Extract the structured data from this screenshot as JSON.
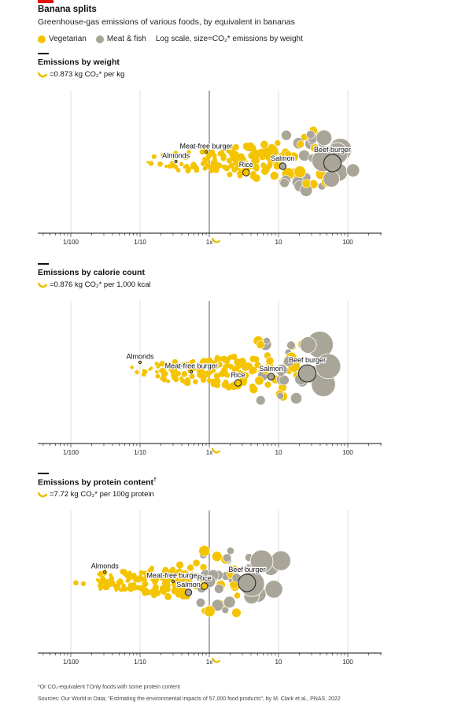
{
  "header": {
    "title": "Banana splits",
    "subtitle": "Greenhouse-gas emissions of various foods, by equivalent in bananas",
    "legend": [
      {
        "label": "Vegetarian",
        "color": "#f5c400"
      },
      {
        "label": "Meat & fish",
        "color": "#a9a598"
      }
    ],
    "scale_note": "Log scale, size=CO₂* emissions by weight"
  },
  "colors": {
    "vegetarian": "#f5c400",
    "meat": "#a9a598",
    "axis": "#888888"
  },
  "chart_data": [
    {
      "type": "scatter",
      "title": "Emissions by weight",
      "unit": "=0.873 kg CO₂* per kg",
      "scale": "log",
      "xlim": [
        0.005,
        250
      ],
      "ticks": [
        {
          "v": 0.01,
          "label": "1/100"
        },
        {
          "v": 0.1,
          "label": "1/10"
        },
        {
          "v": 1,
          "label": "1x"
        },
        {
          "v": 10,
          "label": "10"
        },
        {
          "v": 100,
          "label": "100"
        }
      ],
      "labelled": [
        {
          "name": "Meat-free burger",
          "x": 0.9,
          "type": "veg"
        },
        {
          "name": "Almonds",
          "x": 0.33,
          "type": "veg"
        },
        {
          "name": "Rice",
          "x": 3.4,
          "type": "veg"
        },
        {
          "name": "Salmon",
          "x": 11.5,
          "type": "meat"
        },
        {
          "name": "Beef burger",
          "x": 60,
          "type": "meat"
        }
      ]
    },
    {
      "type": "scatter",
      "title": "Emissions by calorie count",
      "unit": "=0.876 kg CO₂* per 1,000 kcal",
      "scale": "log",
      "xlim": [
        0.005,
        250
      ],
      "ticks": [
        {
          "v": 0.01,
          "label": "1/100"
        },
        {
          "v": 0.1,
          "label": "1/10"
        },
        {
          "v": 1,
          "label": "1x"
        },
        {
          "v": 10,
          "label": "10"
        },
        {
          "v": 100,
          "label": "100"
        }
      ],
      "labelled": [
        {
          "name": "Almonds",
          "x": 0.1,
          "type": "veg"
        },
        {
          "name": "Meat-free burger",
          "x": 0.55,
          "type": "veg"
        },
        {
          "name": "Rice",
          "x": 2.6,
          "type": "veg"
        },
        {
          "name": "Salmon",
          "x": 7.8,
          "type": "meat"
        },
        {
          "name": "Beef burger",
          "x": 26,
          "type": "meat"
        }
      ]
    },
    {
      "type": "scatter",
      "title": "Emissions by protein content",
      "title_mark": "†",
      "unit": "=7.72 kg CO₂* per 100g protein",
      "scale": "log",
      "xlim": [
        0.005,
        250
      ],
      "ticks": [
        {
          "v": 0.01,
          "label": "1/100"
        },
        {
          "v": 0.1,
          "label": "1/10"
        },
        {
          "v": 1,
          "label": "1x"
        },
        {
          "v": 10,
          "label": "10"
        },
        {
          "v": 100,
          "label": "100"
        }
      ],
      "labelled": [
        {
          "name": "Almonds",
          "x": 0.031,
          "type": "veg"
        },
        {
          "name": "Meat-free burger",
          "x": 0.3,
          "type": "veg"
        },
        {
          "name": "Salmon",
          "x": 0.5,
          "type": "meat"
        },
        {
          "name": "Rice",
          "x": 0.85,
          "type": "veg"
        },
        {
          "name": "Beef burger",
          "x": 3.5,
          "type": "meat"
        }
      ]
    }
  ],
  "footnote": "*Or CO₂-equivalent   †Only foods with some protein content",
  "source": "Sources: Our World in Data; “Estimating the environmental impacts of 57,000 food products”, by M. Clark et al., PNAS, 2022"
}
